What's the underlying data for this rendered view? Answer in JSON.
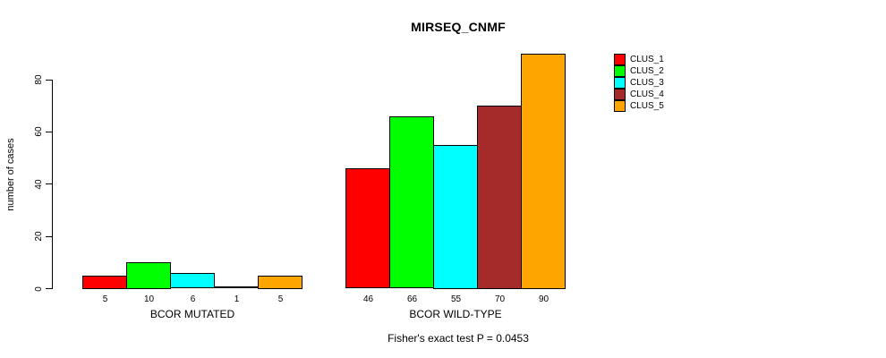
{
  "chart_data": {
    "type": "bar",
    "title": "MIRSEQ_CNMF",
    "ylabel": "number of cases",
    "xlabel": "",
    "subtitle": "Fisher's exact test P = 0.0453",
    "categories": [
      "BCOR MUTATED",
      "BCOR WILD-TYPE"
    ],
    "series": [
      {
        "name": "CLUS_1",
        "color": "#FF0000",
        "values": [
          5,
          46
        ]
      },
      {
        "name": "CLUS_2",
        "color": "#00FF00",
        "values": [
          10,
          66
        ]
      },
      {
        "name": "CLUS_3",
        "color": "#00FFFF",
        "values": [
          6,
          55
        ]
      },
      {
        "name": "CLUS_4",
        "color": "#A52A2A",
        "values": [
          1,
          70
        ]
      },
      {
        "name": "CLUS_5",
        "color": "#FFA500",
        "values": [
          5,
          90
        ]
      }
    ],
    "bar_value_labels": [
      [
        "5",
        "10",
        "6",
        "1",
        "5"
      ],
      [
        "46",
        "66",
        "55",
        "70",
        "90"
      ]
    ],
    "yticks": [
      0,
      20,
      40,
      60,
      80
    ],
    "ylim": [
      0,
      90
    ],
    "legend_position": "right-outside",
    "legend_entries": [
      "CLUS_1",
      "CLUS_2",
      "CLUS_3",
      "CLUS_4",
      "CLUS_5"
    ],
    "grid": false,
    "background": "#ffffff"
  }
}
